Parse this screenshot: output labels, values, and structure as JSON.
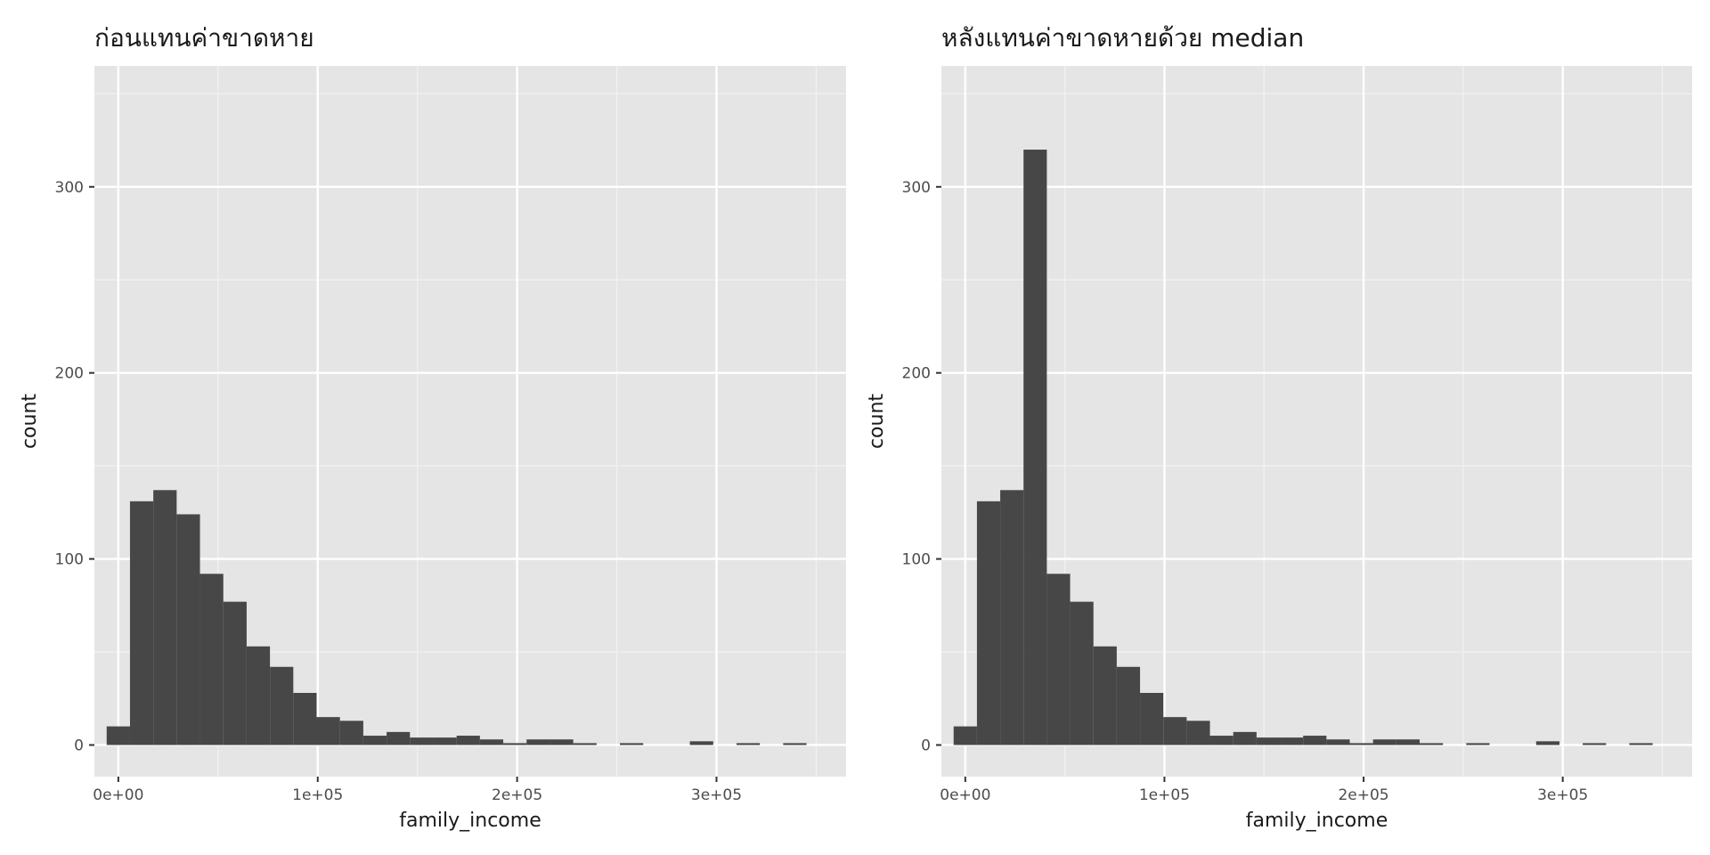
{
  "chart_data": [
    {
      "type": "bar",
      "title": "ก่อนแทนค่าขาดหาย",
      "xlabel": "family_income",
      "ylabel": "count",
      "xlim": [
        -12000,
        365000
      ],
      "ylim": [
        -17,
        365
      ],
      "x_ticks": [
        0,
        100000,
        200000,
        300000
      ],
      "x_tick_labels": [
        "0e+00",
        "1e+05",
        "2e+05",
        "3e+05"
      ],
      "y_ticks": [
        0,
        100,
        200,
        300
      ],
      "y_tick_labels": [
        "0",
        "100",
        "200",
        "300"
      ],
      "grid": true,
      "bin_width": 11700,
      "bin_start": -5850,
      "values": [
        10,
        131,
        137,
        124,
        92,
        77,
        53,
        42,
        28,
        15,
        13,
        5,
        7,
        4,
        4,
        5,
        3,
        1,
        3,
        3,
        1,
        0,
        1,
        0,
        0,
        2,
        0,
        1,
        0,
        1
      ],
      "bar_color": "#474747",
      "panel_color": "#e5e5e5"
    },
    {
      "type": "bar",
      "title": "หลังแทนค่าขาดหายด้วย median",
      "xlabel": "family_income",
      "ylabel": "count",
      "xlim": [
        -12000,
        365000
      ],
      "ylim": [
        -17,
        365
      ],
      "x_ticks": [
        0,
        100000,
        200000,
        300000
      ],
      "x_tick_labels": [
        "0e+00",
        "1e+05",
        "2e+05",
        "3e+05"
      ],
      "y_ticks": [
        0,
        100,
        200,
        300
      ],
      "y_tick_labels": [
        "0",
        "100",
        "200",
        "300"
      ],
      "grid": true,
      "bin_width": 11700,
      "bin_start": -5850,
      "values": [
        10,
        131,
        137,
        320,
        92,
        77,
        53,
        42,
        28,
        15,
        13,
        5,
        7,
        4,
        4,
        5,
        3,
        1,
        3,
        3,
        1,
        0,
        1,
        0,
        0,
        2,
        0,
        1,
        0,
        1
      ],
      "bar_color": "#474747",
      "panel_color": "#e5e5e5"
    }
  ]
}
